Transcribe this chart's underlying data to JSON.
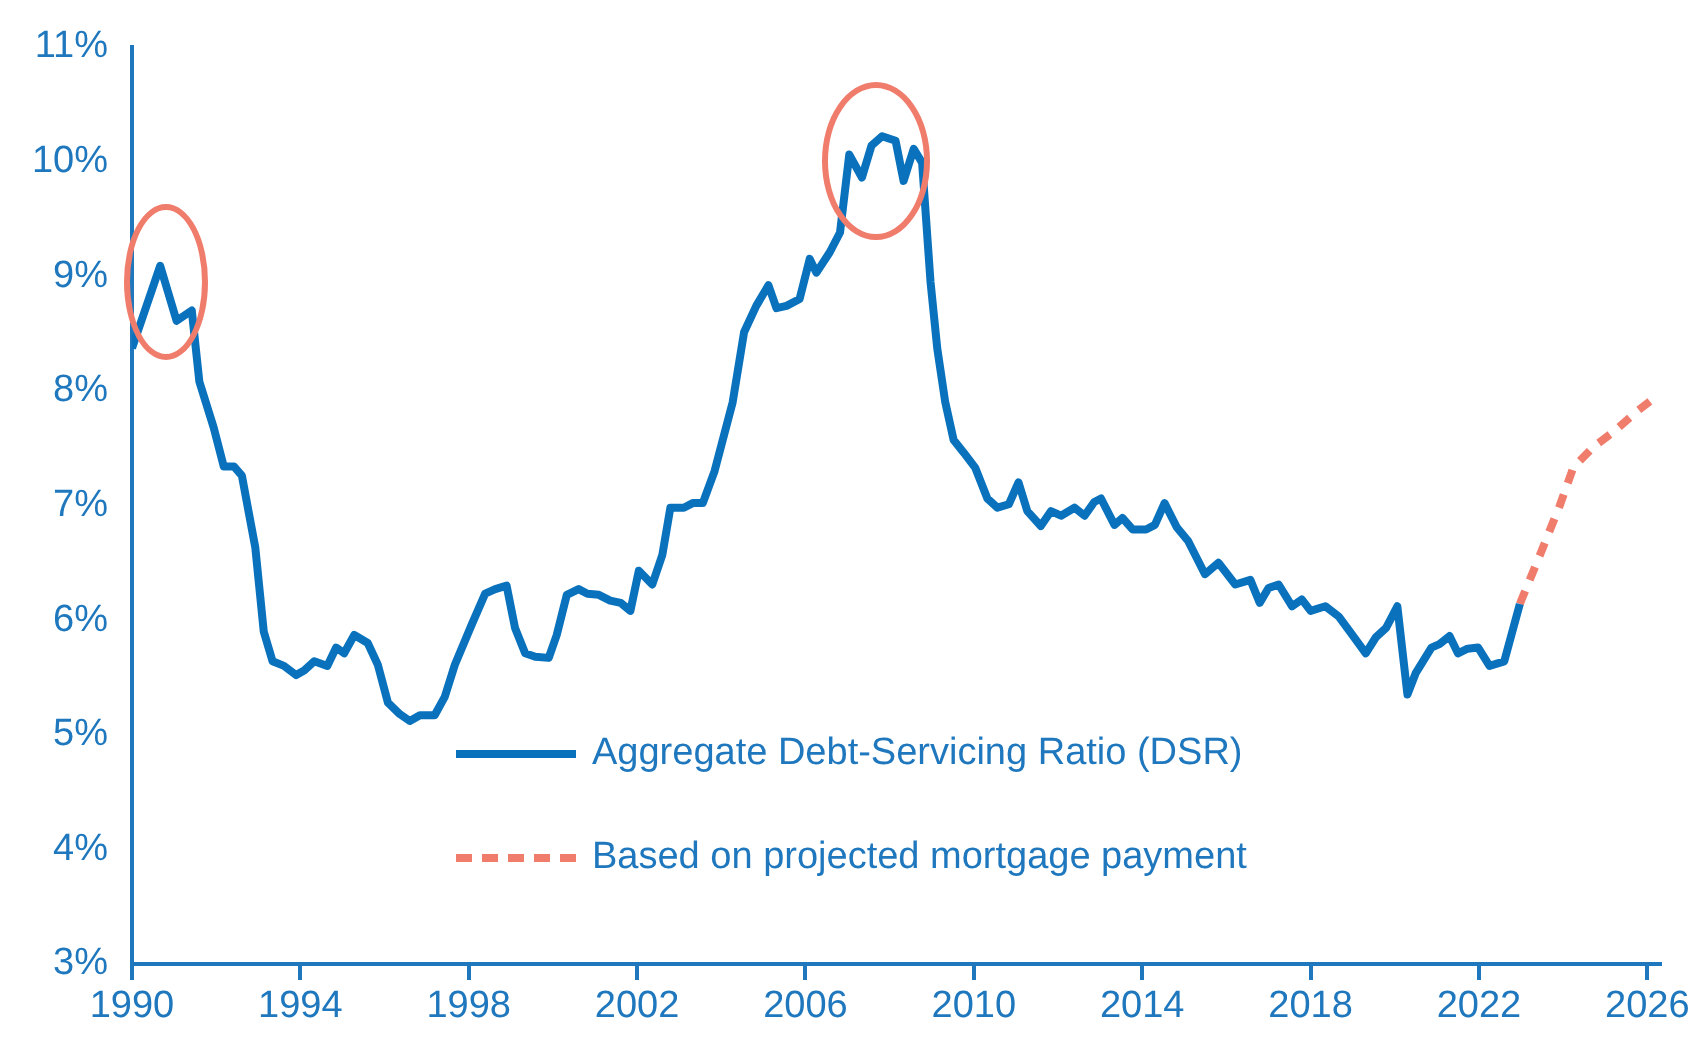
{
  "chart_data": {
    "type": "line",
    "xlim": [
      1990,
      2026.3
    ],
    "ylim": [
      3,
      11
    ],
    "xticks": [
      1990,
      1994,
      1998,
      2002,
      2006,
      2010,
      2014,
      2018,
      2022,
      2026
    ],
    "yticks": [
      {
        "value": 3,
        "label": "3%"
      },
      {
        "value": 4,
        "label": "4%"
      },
      {
        "value": 5,
        "label": "5%"
      },
      {
        "value": 6,
        "label": "6%"
      },
      {
        "value": 7,
        "label": "7%"
      },
      {
        "value": 8,
        "label": "8%"
      },
      {
        "value": 9,
        "label": "9%"
      },
      {
        "value": 10,
        "label": "10%"
      },
      {
        "value": 11,
        "label": "11%"
      }
    ],
    "grid": false,
    "legend": "bottom",
    "marker": "none",
    "series": [
      {
        "name": "Aggregate Debt-Servicing Ratio (DSR)",
        "color": "#0a72bd",
        "line_style": "solid",
        "x": [
          1990.0,
          1990.67,
          1991.06,
          1991.42,
          1991.6,
          1991.94,
          1992.18,
          1992.42,
          1992.61,
          1992.93,
          1993.13,
          1993.34,
          1993.61,
          1993.9,
          1994.09,
          1994.33,
          1994.64,
          1994.85,
          1995.04,
          1995.28,
          1995.6,
          1995.84,
          1996.08,
          1996.36,
          1996.6,
          1996.84,
          1997.19,
          1997.43,
          1997.67,
          1998.07,
          1998.39,
          1998.63,
          1998.9,
          1999.1,
          1999.34,
          1999.58,
          1999.9,
          2000.09,
          2000.33,
          2000.61,
          2000.82,
          2001.09,
          2001.36,
          2001.61,
          2001.84,
          2002.04,
          2002.36,
          2002.6,
          2002.79,
          2003.11,
          2003.32,
          2003.56,
          2003.84,
          2004.27,
          2004.54,
          2004.83,
          2005.12,
          2005.31,
          2005.55,
          2005.86,
          2006.1,
          2006.26,
          2006.58,
          2006.82,
          2007.04,
          2007.34,
          2007.57,
          2007.82,
          2008.14,
          2008.33,
          2008.57,
          2008.77,
          2008.97,
          2009.13,
          2009.32,
          2009.52,
          2009.76,
          2010.03,
          2010.32,
          2010.56,
          2010.83,
          2011.06,
          2011.27,
          2011.59,
          2011.83,
          2012.07,
          2012.39,
          2012.63,
          2012.86,
          2013.02,
          2013.34,
          2013.53,
          2013.77,
          2014.09,
          2014.3,
          2014.53,
          2014.82,
          2015.09,
          2015.49,
          2015.81,
          2016.21,
          2016.57,
          2016.79,
          2017.0,
          2017.24,
          2017.56,
          2017.79,
          2018.0,
          2018.35,
          2018.67,
          2018.99,
          2019.31,
          2019.55,
          2019.79,
          2020.06,
          2020.3,
          2020.5,
          2020.87,
          2021.06,
          2021.3,
          2021.5,
          2021.73,
          2021.98,
          2022.25,
          2022.6,
          2022.97
        ],
        "values": [
          8.37,
          9.09,
          8.61,
          8.7,
          8.08,
          7.68,
          7.34,
          7.34,
          7.26,
          6.63,
          5.9,
          5.64,
          5.6,
          5.52,
          5.56,
          5.64,
          5.6,
          5.76,
          5.71,
          5.87,
          5.8,
          5.61,
          5.28,
          5.18,
          5.12,
          5.17,
          5.17,
          5.33,
          5.61,
          5.96,
          6.23,
          6.27,
          6.3,
          5.93,
          5.71,
          5.68,
          5.67,
          5.87,
          6.22,
          6.27,
          6.23,
          6.22,
          6.17,
          6.15,
          6.08,
          6.43,
          6.31,
          6.57,
          6.98,
          6.98,
          7.02,
          7.02,
          7.3,
          7.9,
          8.51,
          8.74,
          8.92,
          8.72,
          8.74,
          8.8,
          9.15,
          9.03,
          9.21,
          9.38,
          10.06,
          9.86,
          10.14,
          10.22,
          10.18,
          9.83,
          10.11,
          9.99,
          8.95,
          8.37,
          7.9,
          7.57,
          7.46,
          7.33,
          7.06,
          6.98,
          7.01,
          7.2,
          6.95,
          6.82,
          6.95,
          6.91,
          6.98,
          6.91,
          7.03,
          7.06,
          6.83,
          6.89,
          6.79,
          6.79,
          6.83,
          7.02,
          6.81,
          6.69,
          6.4,
          6.5,
          6.31,
          6.35,
          6.15,
          6.28,
          6.31,
          6.12,
          6.18,
          6.08,
          6.12,
          6.03,
          5.87,
          5.71,
          5.85,
          5.93,
          6.12,
          5.35,
          5.54,
          5.76,
          5.79,
          5.86,
          5.71,
          5.75,
          5.76,
          5.6,
          5.64,
          6.14
        ]
      },
      {
        "name": "Based on projected mortgage payment",
        "color": "#f07c6c",
        "line_style": "dashed",
        "x": [
          2022.97,
          2023.45,
          2023.92,
          2024.24,
          2024.72,
          2025.19,
          2025.75,
          2026.28
        ],
        "values": [
          6.14,
          6.57,
          7.0,
          7.33,
          7.51,
          7.64,
          7.82,
          7.97
        ]
      }
    ]
  }
}
